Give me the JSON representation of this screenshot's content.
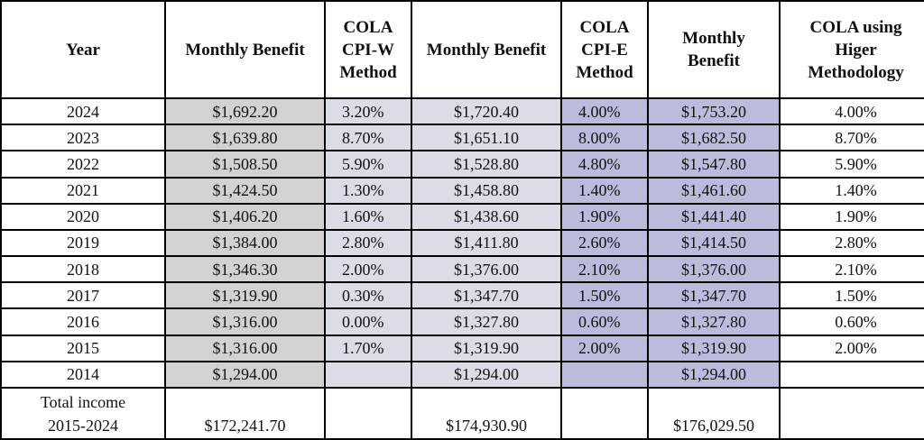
{
  "headers": [
    "Year",
    "Monthly Benefit",
    "COLA CPI-W Method",
    "Monthly Benefit",
    "COLA CPI-E Method",
    "Monthly Benefit",
    "COLA using Higer Methodology"
  ],
  "header_lines": [
    [
      "Year"
    ],
    [
      "Monthly Benefit"
    ],
    [
      "COLA",
      "CPI-W",
      "Method"
    ],
    [
      "Monthly Benefit"
    ],
    [
      "COLA",
      "CPI-E",
      "Method"
    ],
    [
      "Monthly",
      "Benefit"
    ],
    [
      "COLA using",
      "Higer",
      "Methodology"
    ]
  ],
  "rows": [
    [
      "2024",
      "$1,692.20",
      "3.20%",
      "$1,720.40",
      "4.00%",
      "$1,753.20",
      "4.00%"
    ],
    [
      "2023",
      "$1,639.80",
      "8.70%",
      "$1,651.10",
      "8.00%",
      "$1,682.50",
      "8.70%"
    ],
    [
      "2022",
      "$1,508.50",
      "5.90%",
      "$1,528.80",
      "4.80%",
      "$1,547.80",
      "5.90%"
    ],
    [
      "2021",
      "$1,424.50",
      "1.30%",
      "$1,458.80",
      "1.40%",
      "$1,461.60",
      "1.40%"
    ],
    [
      "2020",
      "$1,406.20",
      "1.60%",
      "$1,438.60",
      "1.90%",
      "$1,441.40",
      "1.90%"
    ],
    [
      "2019",
      "$1,384.00",
      "2.80%",
      "$1,411.80",
      "2.60%",
      "$1,414.50",
      "2.80%"
    ],
    [
      "2018",
      "$1,346.30",
      "2.00%",
      "$1,376.00",
      "2.10%",
      "$1,376.00",
      "2.10%"
    ],
    [
      "2017",
      "$1,319.90",
      "0.30%",
      "$1,347.70",
      "1.50%",
      "$1,347.70",
      "1.50%"
    ],
    [
      "2016",
      "$1,316.00",
      "0.00%",
      "$1,327.80",
      "0.60%",
      "$1,327.80",
      "0.60%"
    ],
    [
      "2015",
      "$1,316.00",
      "1.70%",
      "$1,319.90",
      "2.00%",
      "$1,319.90",
      "2.00%"
    ],
    [
      "2014",
      "$1,294.00",
      "",
      "$1,294.00",
      "",
      "$1,294.00",
      ""
    ]
  ],
  "total": {
    "label_lines": [
      "Total income",
      "2015-2024"
    ],
    "values": [
      "$172,241.70",
      "",
      "$174,930.90",
      "",
      "$176,029.50",
      ""
    ]
  },
  "colors": {
    "grid": "#000000",
    "benefit_cpiw": "#d3d2d3",
    "cola_cpiw": "#dadde6",
    "benefit_cpiw2": "#dadde6",
    "cola_cpie": "#bbbcdc",
    "benefit_cpie": "#bbbcdc",
    "plain": "#ffffff"
  }
}
